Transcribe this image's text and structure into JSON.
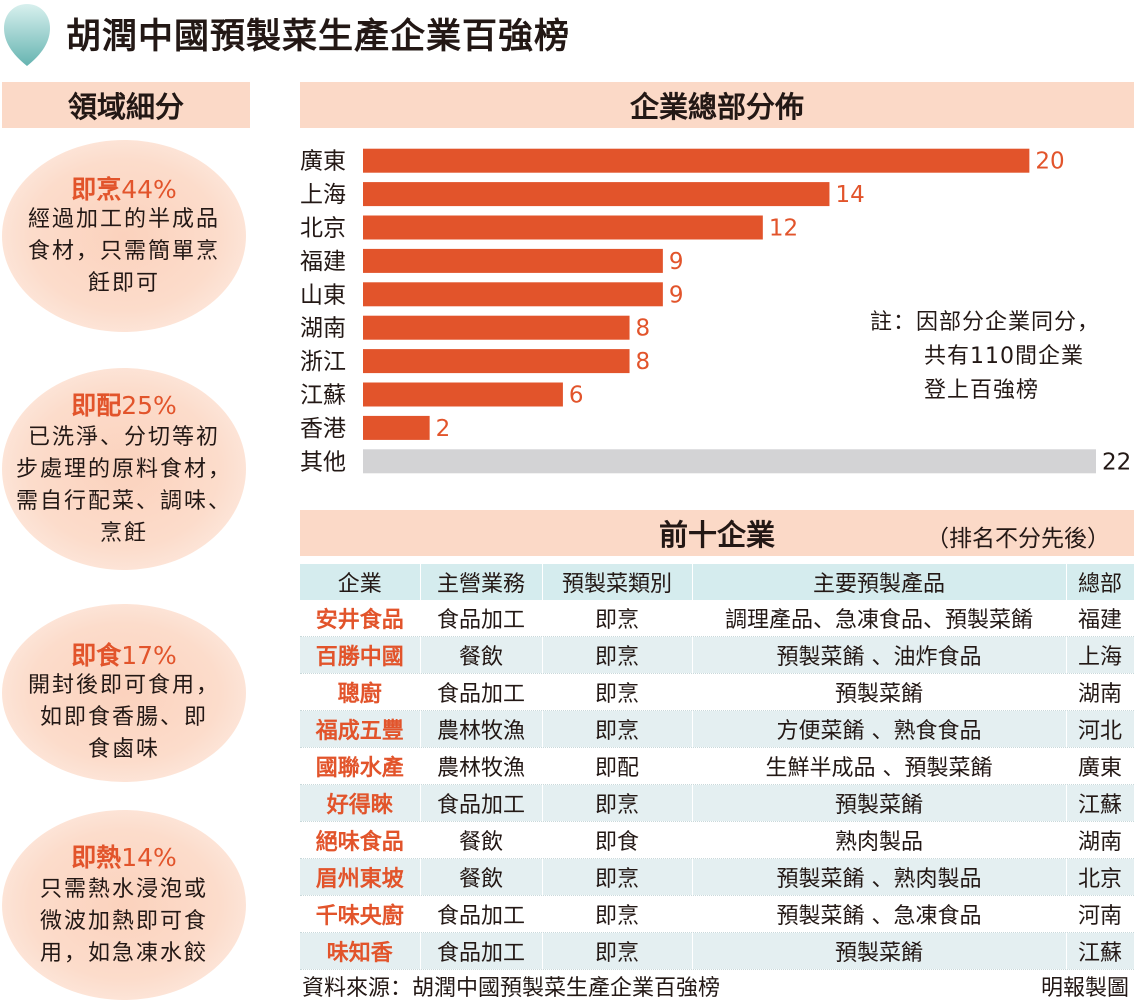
{
  "title": "胡潤中國預製菜生產企業百強榜",
  "segments": {
    "heading": "領域細分",
    "items": [
      {
        "name": "即烹",
        "pct": "44%",
        "desc": "經過加工的半成品\n食材，只需簡單烹\n飪即可"
      },
      {
        "name": "即配",
        "pct": "25%",
        "desc": "已洗淨、分切等初\n步處理的原料食材，\n需自行配菜、調味、\n烹飪"
      },
      {
        "name": "即食",
        "pct": "17%",
        "desc": "開封後即可食用，\n如即食香腸、即\n食鹵味"
      },
      {
        "name": "即熱",
        "pct": "14%",
        "desc": "只需熱水浸泡或\n微波加熱即可食\n用，如急凍水餃"
      }
    ]
  },
  "chart_data": {
    "type": "bar",
    "orientation": "horizontal",
    "title": "企業總部分佈",
    "categories": [
      "廣東",
      "上海",
      "北京",
      "福建",
      "山東",
      "湖南",
      "浙江",
      "江蘇",
      "香港",
      "其他"
    ],
    "values": [
      20,
      14,
      12,
      9,
      9,
      8,
      8,
      6,
      2,
      22
    ],
    "colors": [
      "#e2542b",
      "#e2542b",
      "#e2542b",
      "#e2542b",
      "#e2542b",
      "#e2542b",
      "#e2542b",
      "#e2542b",
      "#e2542b",
      "#d3d3d5"
    ],
    "label_colors": [
      "#e2542b",
      "#e2542b",
      "#e2542b",
      "#e2542b",
      "#e2542b",
      "#e2542b",
      "#e2542b",
      "#e2542b",
      "#e2542b",
      "#231815"
    ],
    "xlim": [
      0,
      22
    ],
    "grid": false,
    "note_line1": "註：因部分企業同分，",
    "note_line2": "共有110間企業",
    "note_line3": "登上百強榜"
  },
  "top10": {
    "heading": "前十企業",
    "note": "（排名不分先後）",
    "headers": [
      "企業",
      "主營業務",
      "預製菜類別",
      "主要預製產品",
      "總部"
    ],
    "rows": [
      [
        "安井食品",
        "食品加工",
        "即烹",
        "調理產品、急凍食品、預製菜餚",
        "福建"
      ],
      [
        "百勝中國",
        "餐飲",
        "即烹",
        "預製菜餚 、油炸食品",
        "上海"
      ],
      [
        "聰廚",
        "食品加工",
        "即烹",
        "預製菜餚",
        "湖南"
      ],
      [
        "福成五豐",
        "農林牧漁",
        "即烹",
        "方便菜餚 、熟食食品",
        "河北"
      ],
      [
        "國聯水產",
        "農林牧漁",
        "即配",
        "生鮮半成品 、預製菜餚",
        "廣東"
      ],
      [
        "好得睞",
        "食品加工",
        "即烹",
        "預製菜餚",
        "江蘇"
      ],
      [
        "絕味食品",
        "餐飲",
        "即食",
        "熟肉製品",
        "湖南"
      ],
      [
        "眉州東坡",
        "餐飲",
        "即烹",
        "預製菜餚 、熟肉製品",
        "北京"
      ],
      [
        "千味央廚",
        "食品加工",
        "即烹",
        "預製菜餚 、急凍食品",
        "河南"
      ],
      [
        "味知香",
        "食品加工",
        "即烹",
        "預製菜餚",
        "江蘇"
      ]
    ]
  },
  "footer": {
    "source": "資料來源：胡潤中國預製菜生產企業百強榜",
    "credit": "明報製圖"
  },
  "colors": {
    "accent": "#e2542b",
    "header_bg": "#fbd9c7",
    "table_header_bg": "#d5ecee",
    "table_row_shade": "#e4eff1",
    "other_bar": "#d3d3d5"
  },
  "icons": {
    "header": "teardrop-icon"
  }
}
